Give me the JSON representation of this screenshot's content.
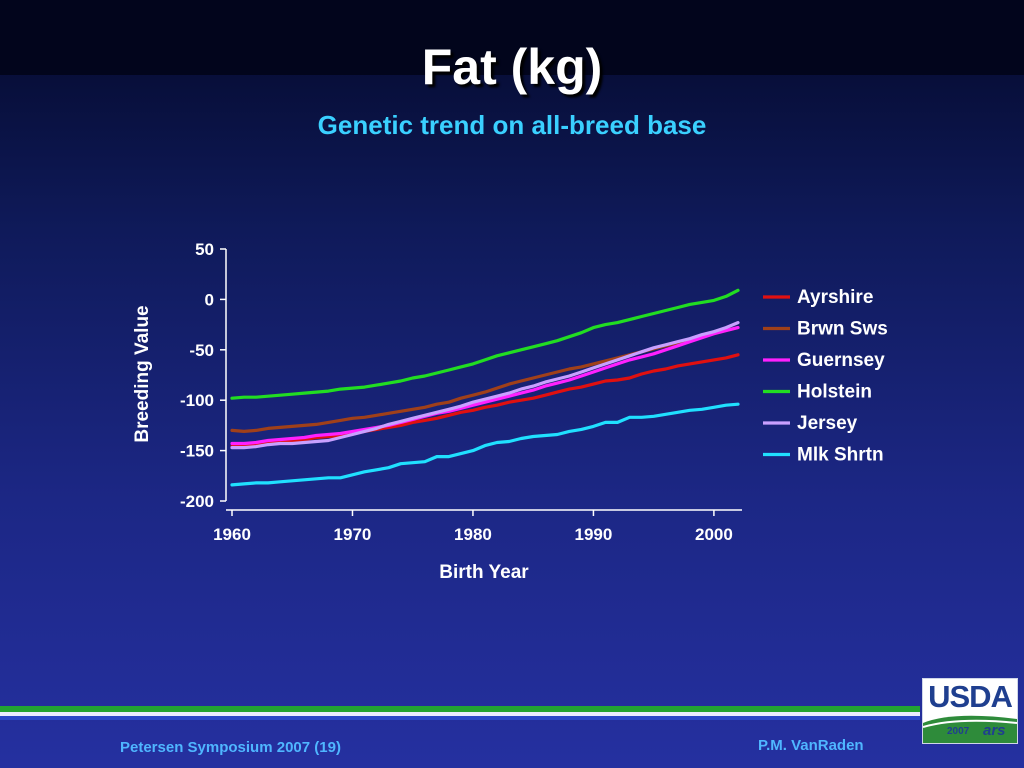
{
  "slide": {
    "title": "Fat (kg)",
    "subtitle": "Genetic trend on all-breed base",
    "footer_left": "Petersen Symposium 2007 (19)",
    "footer_right": "P.M. VanRaden",
    "logo_text": "USDA",
    "logo_year": "2007",
    "logo_mark": "ars"
  },
  "chart_data": {
    "type": "line",
    "title": "",
    "xlabel": "Birth Year",
    "ylabel": "Breeding Value",
    "xlim": [
      1960,
      2002
    ],
    "ylim": [
      -200,
      50
    ],
    "xticks": [
      1960,
      1970,
      1980,
      1990,
      2000
    ],
    "yticks": [
      50,
      0,
      -50,
      -100,
      -150,
      -200
    ],
    "grid": false,
    "legend": "right",
    "x": [
      1960,
      1961,
      1962,
      1963,
      1964,
      1965,
      1966,
      1967,
      1968,
      1969,
      1970,
      1971,
      1972,
      1973,
      1974,
      1975,
      1976,
      1977,
      1978,
      1979,
      1980,
      1981,
      1982,
      1983,
      1984,
      1985,
      1986,
      1987,
      1988,
      1989,
      1990,
      1991,
      1992,
      1993,
      1994,
      1995,
      1996,
      1997,
      1998,
      1999,
      2000,
      2001,
      2002
    ],
    "series": [
      {
        "name": "Ayrshire",
        "color": "#e01010",
        "values": [
          -146,
          -145,
          -144,
          -142,
          -141,
          -140,
          -139,
          -137,
          -136,
          -135,
          -133,
          -131,
          -129,
          -127,
          -125,
          -122,
          -120,
          -118,
          -115,
          -112,
          -110,
          -107,
          -105,
          -102,
          -100,
          -98,
          -95,
          -92,
          -89,
          -87,
          -84,
          -81,
          -80,
          -78,
          -74,
          -71,
          -69,
          -66,
          -64,
          -62,
          -60,
          -58,
          -55
        ]
      },
      {
        "name": "Brwn Sws",
        "color": "#a0401a",
        "values": [
          -130,
          -131,
          -130,
          -128,
          -127,
          -126,
          -125,
          -124,
          -122,
          -120,
          -118,
          -117,
          -115,
          -113,
          -111,
          -109,
          -107,
          -104,
          -102,
          -98,
          -95,
          -92,
          -88,
          -84,
          -81,
          -78,
          -75,
          -72,
          -69,
          -67,
          -64,
          -61,
          -58,
          -55,
          -52,
          -49,
          -46,
          -43,
          -40,
          -37,
          -34,
          -31,
          -28
        ]
      },
      {
        "name": "Guernsey",
        "color": "#ff20ff",
        "values": [
          -143,
          -143,
          -142,
          -140,
          -139,
          -138,
          -137,
          -135,
          -134,
          -133,
          -131,
          -129,
          -127,
          -125,
          -122,
          -119,
          -116,
          -113,
          -111,
          -108,
          -105,
          -102,
          -99,
          -96,
          -93,
          -90,
          -86,
          -83,
          -80,
          -76,
          -72,
          -68,
          -64,
          -60,
          -57,
          -54,
          -50,
          -46,
          -42,
          -38,
          -34,
          -31,
          -28
        ]
      },
      {
        "name": "Holstein",
        "color": "#22dd22",
        "values": [
          -98,
          -97,
          -97,
          -96,
          -95,
          -94,
          -93,
          -92,
          -91,
          -89,
          -88,
          -87,
          -85,
          -83,
          -81,
          -78,
          -76,
          -73,
          -70,
          -67,
          -64,
          -60,
          -56,
          -53,
          -50,
          -47,
          -44,
          -41,
          -37,
          -33,
          -28,
          -25,
          -23,
          -20,
          -17,
          -14,
          -11,
          -8,
          -5,
          -3,
          -1,
          3,
          9
        ]
      },
      {
        "name": "Jersey",
        "color": "#c8a0ff",
        "values": [
          -147,
          -147,
          -146,
          -144,
          -143,
          -143,
          -142,
          -141,
          -140,
          -137,
          -134,
          -131,
          -128,
          -124,
          -121,
          -118,
          -115,
          -112,
          -109,
          -106,
          -102,
          -99,
          -96,
          -93,
          -89,
          -86,
          -82,
          -79,
          -76,
          -72,
          -68,
          -64,
          -60,
          -56,
          -52,
          -48,
          -45,
          -42,
          -39,
          -35,
          -32,
          -28,
          -23
        ]
      },
      {
        "name": "Mlk Shrtn",
        "color": "#20e0ff",
        "values": [
          -184,
          -183,
          -182,
          -182,
          -181,
          -180,
          -179,
          -178,
          -177,
          -177,
          -174,
          -171,
          -169,
          -167,
          -163,
          -162,
          -161,
          -156,
          -156,
          -153,
          -150,
          -145,
          -142,
          -141,
          -138,
          -136,
          -135,
          -134,
          -131,
          -129,
          -126,
          -122,
          -122,
          -117,
          -117,
          -116,
          -114,
          -112,
          -110,
          -109,
          -107,
          -105,
          -104
        ]
      }
    ]
  }
}
